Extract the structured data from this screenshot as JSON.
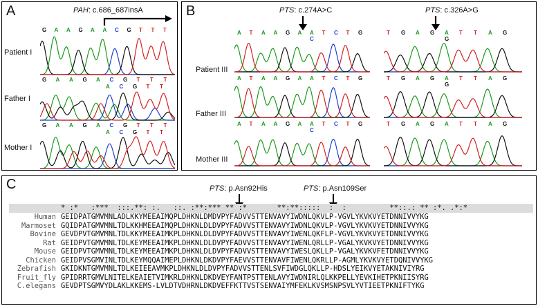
{
  "panel_a": {
    "letter": "A",
    "gene": "PAH",
    "variant": ": c.686_687insA",
    "rows": [
      {
        "label": "Patient I",
        "bases": [
          "G",
          "A",
          "A",
          "G",
          "A",
          "A",
          "C",
          "G",
          "T",
          "T",
          "T"
        ]
      },
      {
        "label": "Father I",
        "bases": [
          "G",
          "A",
          "A",
          "G",
          "A",
          "C",
          "G",
          "T",
          "T",
          "T"
        ],
        "bases2": [
          "A",
          "C",
          "G",
          "T",
          "T"
        ]
      },
      {
        "label": "Mother I",
        "bases": [
          "G",
          "A",
          "A",
          "G",
          "A",
          "C",
          "G",
          "T",
          "T",
          "T"
        ],
        "bases2": [
          "A",
          "C",
          "G",
          "T",
          "T"
        ]
      }
    ]
  },
  "panel_b": {
    "letter": "B",
    "left_title_gene": "PTS",
    "left_title_variant": ": c.274A>C",
    "right_title_gene": "PTS",
    "right_title_variant": ": c.326A>G",
    "rows": [
      {
        "label": "Patient III",
        "left": [
          "A",
          "T",
          "A",
          "A",
          "G",
          "A",
          "A",
          "T",
          "C",
          "T",
          "G"
        ],
        "left_alt": "C",
        "right": [
          "T",
          "G",
          "A",
          "G",
          "A",
          "T",
          "T",
          "A",
          "G"
        ],
        "right_alt": "G"
      },
      {
        "label": "Father III",
        "left": [
          "A",
          "T",
          "A",
          "A",
          "G",
          "A",
          "A",
          "T",
          "C",
          "T",
          "G"
        ],
        "right": [
          "T",
          "G",
          "A",
          "G",
          "A",
          "T",
          "T",
          "A",
          "G"
        ],
        "right_alt": "G"
      },
      {
        "label": "Mother III",
        "left": [
          "A",
          "T",
          "A",
          "A",
          "G",
          "A",
          "A",
          "T",
          "C",
          "T",
          "G"
        ],
        "left_alt": "C",
        "right": [
          "T",
          "G",
          "A",
          "G",
          "A",
          "T",
          "T",
          "A",
          "G"
        ]
      }
    ]
  },
  "panel_c": {
    "letter": "C",
    "arrow1_gene": "PTS",
    "arrow1_variant": ": p.Asn92His",
    "arrow2_gene": "PTS",
    "arrow2_variant": ": p.Asn109Ser",
    "conservation": "* :*   :***  :::.**: :.   ::. :**:*** ** :*       **:**:::::  :  :          **::.: ** :*. .*:*",
    "species": [
      "Human",
      "Marmoset",
      "Bovine",
      "Rat",
      "Mouse",
      "Chicken",
      "Zebrafish",
      "Fruit_fly",
      "C.elegans"
    ],
    "sequences": [
      "GEIDPATGMVMNLADLKKYMEEAIMQPLDHKNLDMDVPYFADVVSTTENVAVYIWDNLQKVLP-VGVLYKVKVYETDNNIVVYKG",
      "GQIDPATGMVMNLTDLKKHMEEAIMQPLDHKNLDLDVPYFADVVSTTENVAVYIWDNLQKVLP-VGVLYKVKVYETDNNIVVYKG",
      "GEVDPVTGMVMNLTDLKKYMEEAIMKPLDHKNLDLDVPYFADVVSTTENVAVYIWENLQKFLP-VGVLYKVKVYETDNNIVVYKG",
      "GEIDPVTGMVMNLTDLKEYMEEAIMKPLDHKNLDLDVPYFADVVSTTENVAVYIWENLQRLLP-VGALYKVKVYETDNNIVVYKG",
      "GEIDPVTGMVMNLTDLKEYMEEAIMKPLDHKNLDLDVPYFADVVSTTENVAVYIWESLQKLLP-VGALYKVKVFETDNNIVVYKG",
      "GEIDPVSGMVINLTDLKEYMQQAIMEPLDHKNLDKDVPYFAEVVSTTENVAVFIWENLQKRLLP-AGMLYKVKVYETDQNIVVYKG",
      "GKIDKNTGMVMNLTDLKEIEEAVMKPLDHKNLDLDVPYFADVVSTTENLSVFIWDGLQKLLP-HDSLYEIKVYETAKNIVIYRG",
      "GPIDRRTGMVLNITELKEAIETVIMKRLDHKNLDKDVEYFANTPSTTENLAVYIWDNIRLQLKKPELLYEVKIHETPKNIISYRG",
      "GEVDPTSGMVYDLAKLKKEMS-LVLDTVDHRNLDKDVEFFKTTVSTSENVAIYMFEKLKVSMSNPSVLYVTIEETPKNIFTYKG"
    ]
  }
}
